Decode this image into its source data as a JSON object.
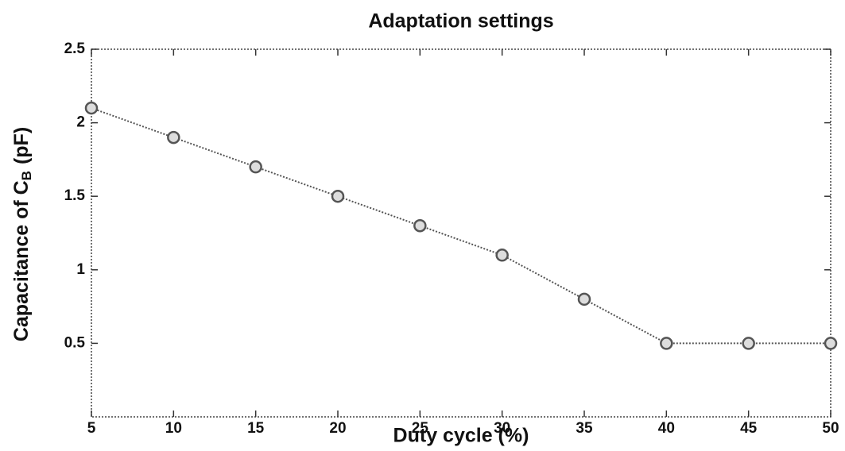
{
  "chart_data": {
    "type": "line",
    "title": "Adaptation settings",
    "x_label": "Duty cycle (%)",
    "y_label": {
      "text": "Capacitance of C",
      "subscript": "B",
      "unit": "(pF)"
    },
    "x": [
      5,
      10,
      15,
      20,
      25,
      30,
      35,
      40,
      45,
      50
    ],
    "series": [
      {
        "color": "#555555",
        "values": [
          2.1,
          1.9,
          1.7,
          1.5,
          1.3,
          1.1,
          0.8,
          0.5,
          0.5,
          0.5
        ]
      }
    ],
    "xlim": [
      5,
      50
    ],
    "xticks": [
      5,
      10,
      15,
      20,
      25,
      30,
      35,
      40,
      45,
      50
    ],
    "ylim": [
      0,
      2.5
    ],
    "yticks": [
      0.5,
      1,
      1.5,
      2,
      2.5
    ],
    "grid": false
  }
}
